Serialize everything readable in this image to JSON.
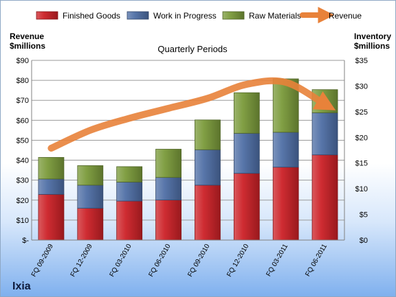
{
  "chart_data": {
    "type": "bar",
    "stacked": true,
    "title": "Quarterly Periods",
    "ylabel_left": [
      "Revenue",
      "$millions"
    ],
    "ylabel_right": [
      "Inventory",
      "$millions"
    ],
    "categories": [
      "FQ 09-2009",
      "FQ 12-2009",
      "FQ 03-2010",
      "FQ 06-2010",
      "FQ 09-2010",
      "FQ 12-2010",
      "FQ 03-2011",
      "FQ 06-2011"
    ],
    "axis_left": {
      "min": 0,
      "max": 90,
      "ticks": [
        "$-",
        "$10",
        "$20",
        "$30",
        "$40",
        "$50",
        "$60",
        "$70",
        "$80",
        "$90"
      ]
    },
    "axis_right": {
      "min": 0,
      "max": 35,
      "ticks": [
        "$0",
        "$5",
        "$10",
        "$15",
        "$20",
        "$25",
        "$30",
        "$35"
      ]
    },
    "series": [
      {
        "name": "Finished Goods",
        "axis": "right",
        "color": "#cc2127",
        "values": [
          8.9,
          6.2,
          7.6,
          7.8,
          10.7,
          13.0,
          14.2,
          16.6
        ]
      },
      {
        "name": "Work in Progress",
        "axis": "right",
        "color": "#4f6fa6",
        "values": [
          3.0,
          4.5,
          3.7,
          4.4,
          6.9,
          7.8,
          6.8,
          8.2
        ]
      },
      {
        "name": "Raw Materials",
        "axis": "right",
        "color": "#7a9a3a",
        "values": [
          4.2,
          3.8,
          3.0,
          5.5,
          5.8,
          7.9,
          10.4,
          4.5
        ]
      },
      {
        "name": "Revenue",
        "axis": "left",
        "type": "line",
        "color": "#e8823a",
        "values": [
          46,
          55,
          61,
          66,
          71,
          78,
          79,
          68
        ]
      }
    ],
    "legend_position": "top",
    "grid": true
  },
  "brand": "Ixia"
}
